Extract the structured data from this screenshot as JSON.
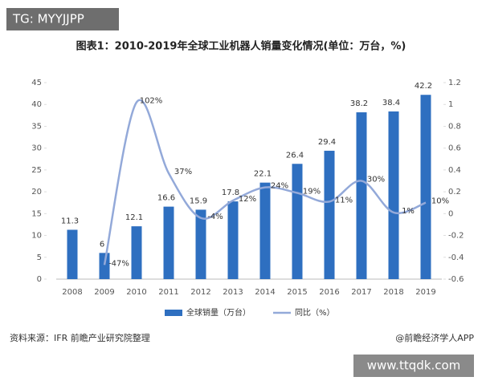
{
  "watermarks": [
    "TG: MYYJJPP",
    "www.ttqdk.com"
  ],
  "chart_data": {
    "type": "bar",
    "title": "图表1：2010-2019年全球工业机器人销量变化情况(单位：万台，%)",
    "categories": [
      "2008",
      "2009",
      "2010",
      "2011",
      "2012",
      "2013",
      "2014",
      "2015",
      "2016",
      "2017",
      "2018",
      "2019"
    ],
    "series": [
      {
        "name": "全球销量（万台）",
        "color": "#2e6fc0",
        "values": [
          11.3,
          6,
          12.1,
          16.6,
          15.9,
          17.8,
          22.1,
          26.4,
          29.4,
          38.2,
          38.4,
          42.2
        ]
      },
      {
        "name": "同比（%）",
        "color": "#93a9d9",
        "axis": "y2",
        "values": [
          null,
          -0.47,
          1.02,
          0.37,
          -0.04,
          0.12,
          0.24,
          0.19,
          0.11,
          0.3,
          0.01,
          0.1
        ],
        "value_labels": [
          null,
          "-47%",
          "102%",
          "37%",
          "-4%",
          "12%",
          "24%",
          "19%",
          "11%",
          "30%",
          "1%",
          "10%"
        ]
      }
    ],
    "ylim": [
      0,
      45
    ],
    "yticks": [
      0,
      5,
      10,
      15,
      20,
      25,
      30,
      35,
      40,
      45
    ],
    "y2lim": [
      -0.6,
      1.2
    ],
    "y2ticks": [
      -0.6,
      -0.4,
      -0.2,
      0,
      0.2,
      0.4,
      0.6,
      0.8,
      1,
      1.2
    ],
    "source": "资料来源：IFR 前瞻产业研究院整理",
    "credit": "@前瞻经济学人APP"
  }
}
